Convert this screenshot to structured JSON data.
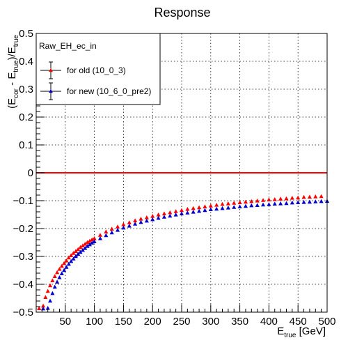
{
  "chart_data": {
    "type": "scatter",
    "title": "Response",
    "xlabel": {
      "base": "E",
      "sub": "true",
      "unit": " [GeV]"
    },
    "ylabel": {
      "open": "(E",
      "sub1": "cor",
      "mid": " - E",
      "sub2": "true",
      "close": ")/E",
      "sub3": "true"
    },
    "xlim": [
      0,
      500
    ],
    "ylim": [
      -0.5,
      0.5
    ],
    "x_ticks": [
      50,
      100,
      150,
      200,
      250,
      300,
      350,
      400,
      450,
      500
    ],
    "x_tick_labels": [
      "50",
      "100",
      "150",
      "200",
      "250",
      "300",
      "350",
      "400",
      "450",
      "500"
    ],
    "y_ticks": [
      -0.5,
      -0.4,
      -0.3,
      -0.2,
      -0.1,
      0,
      0.1,
      0.2,
      0.3,
      0.4,
      0.5
    ],
    "y_tick_labels": [
      "−0.5",
      "−0.4",
      "−0.3",
      "−0.2",
      "−0.1",
      "0",
      "0.1",
      "0.2",
      "0.3",
      "0.4",
      "0.5"
    ],
    "grid": true,
    "reference_line": {
      "y": 0,
      "color": "#ff0000"
    },
    "legend": {
      "title": "Raw_EH_ec_in",
      "placement": "top-left",
      "entries": [
        "for old (10_0_3)",
        "for new (10_6_0_pre2)"
      ]
    },
    "series": [
      {
        "name": "for old (10_0_3)",
        "color": "#ff0000",
        "marker": "triangle",
        "x": [
          5,
          12,
          16,
          20,
          24,
          28,
          32,
          36,
          40,
          44,
          48,
          52,
          56,
          60,
          64,
          68,
          72,
          76,
          80,
          84,
          88,
          92,
          96,
          100,
          110,
          120,
          130,
          140,
          150,
          160,
          170,
          180,
          190,
          200,
          210,
          220,
          230,
          240,
          250,
          260,
          270,
          280,
          290,
          300,
          310,
          320,
          330,
          340,
          350,
          360,
          370,
          380,
          390,
          400,
          410,
          420,
          430,
          440,
          450,
          460,
          470,
          480,
          490
        ],
        "y": [
          -0.487,
          -0.478,
          -0.447,
          -0.425,
          -0.405,
          -0.387,
          -0.372,
          -0.358,
          -0.346,
          -0.335,
          -0.325,
          -0.316,
          -0.305,
          -0.297,
          -0.289,
          -0.282,
          -0.275,
          -0.268,
          -0.262,
          -0.256,
          -0.25,
          -0.245,
          -0.24,
          -0.236,
          -0.224,
          -0.212,
          -0.202,
          -0.194,
          -0.186,
          -0.179,
          -0.172,
          -0.166,
          -0.161,
          -0.156,
          -0.151,
          -0.147,
          -0.143,
          -0.139,
          -0.135,
          -0.131,
          -0.128,
          -0.125,
          -0.122,
          -0.119,
          -0.116,
          -0.113,
          -0.111,
          -0.109,
          -0.107,
          -0.105,
          -0.103,
          -0.101,
          -0.099,
          -0.097,
          -0.096,
          -0.094,
          -0.093,
          -0.091,
          -0.09,
          -0.088,
          -0.087,
          -0.086,
          -0.085
        ]
      },
      {
        "name": "for new (10_6_0_pre2)",
        "color": "#0000cc",
        "marker": "triangle",
        "x": [
          12,
          20,
          24,
          28,
          32,
          36,
          40,
          44,
          48,
          52,
          56,
          60,
          64,
          68,
          72,
          76,
          80,
          84,
          88,
          92,
          96,
          100,
          110,
          120,
          130,
          140,
          150,
          160,
          170,
          180,
          190,
          200,
          210,
          220,
          230,
          240,
          250,
          260,
          270,
          280,
          290,
          300,
          310,
          320,
          330,
          340,
          350,
          360,
          370,
          380,
          390,
          400,
          410,
          420,
          430,
          440,
          450,
          460,
          470,
          480,
          490,
          500
        ],
        "y": [
          -0.488,
          -0.486,
          -0.46,
          -0.433,
          -0.41,
          -0.392,
          -0.376,
          -0.362,
          -0.35,
          -0.339,
          -0.328,
          -0.318,
          -0.309,
          -0.3,
          -0.292,
          -0.285,
          -0.278,
          -0.271,
          -0.264,
          -0.258,
          -0.252,
          -0.247,
          -0.236,
          -0.225,
          -0.215,
          -0.206,
          -0.198,
          -0.191,
          -0.184,
          -0.178,
          -0.173,
          -0.168,
          -0.163,
          -0.159,
          -0.155,
          -0.151,
          -0.147,
          -0.144,
          -0.141,
          -0.138,
          -0.135,
          -0.132,
          -0.13,
          -0.128,
          -0.126,
          -0.124,
          -0.122,
          -0.12,
          -0.118,
          -0.117,
          -0.115,
          -0.114,
          -0.112,
          -0.111,
          -0.11,
          -0.108,
          -0.107,
          -0.106,
          -0.105,
          -0.104,
          -0.103,
          -0.102
        ]
      }
    ]
  }
}
